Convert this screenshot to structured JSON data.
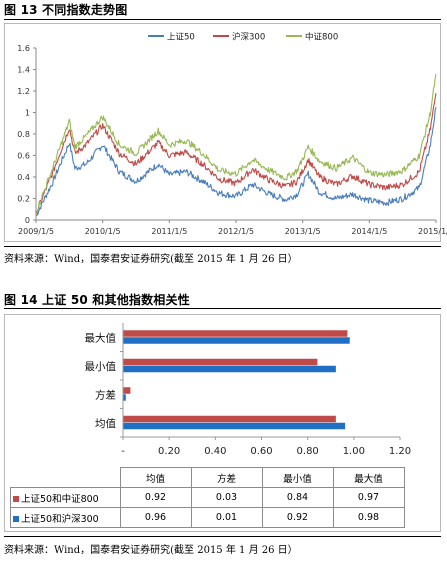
{
  "figure1": {
    "title": "图 13  不同指数走势图",
    "source": "资料来源：Wind，国泰君安证券研究(截至 2015 年 1 月 26 日）"
  },
  "figure2": {
    "title": "图 14    上证 50 和其他指数相关性",
    "source": "资料来源：Wind，国泰君安证券研究(截至 2015 年 1 月 26 日）"
  },
  "chart_data": [
    {
      "type": "line",
      "title": "",
      "legend_position": "top-center",
      "grid": false,
      "x_tick_labels": [
        "2009/1/5",
        "2010/1/5",
        "2011/1/5",
        "2012/1/5",
        "2013/1/5",
        "2014/1/5",
        "2015/1/5"
      ],
      "ylim": [
        0,
        1.6
      ],
      "y_ticks": [
        "0",
        "0.2",
        "0.4",
        "0.6",
        "0.8",
        "1",
        "1.2",
        "1.4",
        "1.6"
      ],
      "x": [
        "2009/1",
        "2009/4",
        "2009/7",
        "2009/8",
        "2009/10",
        "2010/1",
        "2010/4",
        "2010/7",
        "2010/11",
        "2011/1",
        "2011/4",
        "2011/7",
        "2011/10",
        "2012/1",
        "2012/4",
        "2012/7",
        "2012/10",
        "2012/12",
        "2013/2",
        "2013/4",
        "2013/7",
        "2013/10",
        "2014/1",
        "2014/4",
        "2014/7",
        "2014/10",
        "2014/12",
        "2015/1"
      ],
      "series": [
        {
          "name": "上证50",
          "color": "#4a7ebb",
          "values": [
            0.04,
            0.35,
            0.72,
            0.48,
            0.52,
            0.7,
            0.45,
            0.36,
            0.52,
            0.42,
            0.45,
            0.36,
            0.25,
            0.22,
            0.33,
            0.24,
            0.19,
            0.24,
            0.43,
            0.26,
            0.2,
            0.24,
            0.18,
            0.16,
            0.2,
            0.3,
            0.7,
            1.05
          ]
        },
        {
          "name": "沪深300",
          "color": "#be4b48",
          "values": [
            0.06,
            0.44,
            0.86,
            0.62,
            0.7,
            0.88,
            0.62,
            0.52,
            0.72,
            0.6,
            0.63,
            0.52,
            0.38,
            0.34,
            0.47,
            0.37,
            0.31,
            0.36,
            0.56,
            0.4,
            0.33,
            0.41,
            0.33,
            0.3,
            0.33,
            0.45,
            0.85,
            1.18
          ]
        },
        {
          "name": "中证800",
          "color": "#98b954",
          "values": [
            0.07,
            0.48,
            0.92,
            0.68,
            0.78,
            0.96,
            0.7,
            0.62,
            0.83,
            0.7,
            0.74,
            0.62,
            0.46,
            0.43,
            0.56,
            0.46,
            0.39,
            0.46,
            0.68,
            0.55,
            0.48,
            0.58,
            0.44,
            0.42,
            0.46,
            0.6,
            1.0,
            1.36
          ]
        }
      ]
    },
    {
      "type": "bar",
      "orientation": "horizontal",
      "title": "",
      "categories": [
        "均值",
        "方差",
        "最小值",
        "最大值"
      ],
      "x_tick_labels": [
        "-",
        "0.20",
        "0.40",
        "0.60",
        "0.80",
        "1.00",
        "1.20"
      ],
      "xlim": [
        0,
        1.2
      ],
      "series": [
        {
          "name": "上证50和中证800",
          "color": "#be4b48",
          "values": [
            0.92,
            0.03,
            0.84,
            0.97
          ]
        },
        {
          "name": "上证50和沪深300",
          "color": "#1f6fc5",
          "values": [
            0.96,
            0.01,
            0.92,
            0.98
          ]
        }
      ],
      "table": {
        "headers": [
          "均值",
          "方差",
          "最小值",
          "最大值"
        ],
        "rows": [
          {
            "label": "上证50和中证800",
            "values": [
              "0.92",
              "0.03",
              "0.84",
              "0.97"
            ]
          },
          {
            "label": "上证50和沪深300",
            "values": [
              "0.96",
              "0.01",
              "0.92",
              "0.98"
            ]
          }
        ]
      }
    }
  ]
}
